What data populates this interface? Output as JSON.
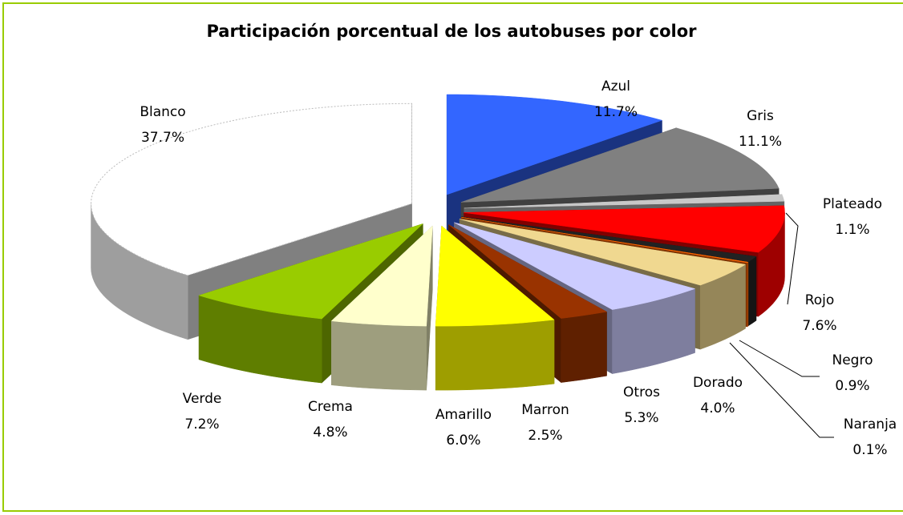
{
  "chart_data": {
    "type": "pie",
    "title": "Participación porcentual de los autobuses por color",
    "categories": [
      "Azul",
      "Gris",
      "Plateado",
      "Rojo",
      "Negro",
      "Naranja",
      "Dorado",
      "Otros",
      "Marron",
      "Amarillo",
      "Crema",
      "Verde",
      "Blanco"
    ],
    "values": [
      11.7,
      11.1,
      1.1,
      7.6,
      0.9,
      0.1,
      4.0,
      5.3,
      2.5,
      6.0,
      4.8,
      7.2,
      37.7
    ],
    "value_labels": [
      "11.7%",
      "11.1%",
      "1.1%",
      "7.6%",
      "0.9%",
      "0.1%",
      "4.0%",
      "5.3%",
      "2.5%",
      "6.0%",
      "4.8%",
      "7.2%",
      "37.7%"
    ],
    "colors": [
      "#3366ff",
      "#808080",
      "#c8c8c8",
      "#ff0000",
      "#222222",
      "#ff6600",
      "#f0d890",
      "#ccccff",
      "#993300",
      "#ffff00",
      "#ffffcc",
      "#99cc00",
      "#ffffff"
    ]
  }
}
